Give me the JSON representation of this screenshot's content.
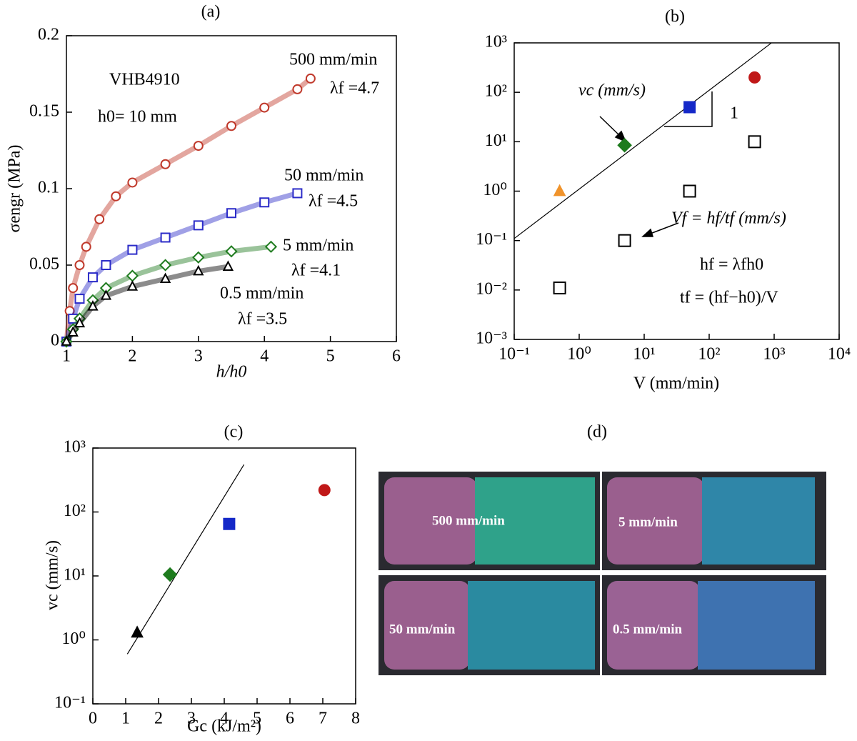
{
  "chart_data": [
    {
      "type": "line",
      "title": "(a)",
      "xlabel": "h/h0",
      "ylabel": "σengr (MPa)",
      "xlim": [
        1,
        6
      ],
      "ylim": [
        0,
        0.2
      ],
      "xticks": [
        1,
        2,
        3,
        4,
        5,
        6
      ],
      "yticks": [
        0,
        0.05,
        0.1,
        0.15,
        0.2
      ],
      "annotations": [
        "VHB4910",
        "h0= 10 mm"
      ],
      "series": [
        {
          "name": "500 mm/min",
          "label": "λf =4.7",
          "color": "#c0392b",
          "marker": "circle",
          "filled": false,
          "x": [
            1,
            1.05,
            1.1,
            1.2,
            1.3,
            1.5,
            1.75,
            2,
            2.5,
            3,
            3.5,
            4,
            4.5,
            4.7
          ],
          "values": [
            0,
            0.02,
            0.035,
            0.05,
            0.062,
            0.08,
            0.095,
            0.104,
            0.116,
            0.128,
            0.141,
            0.153,
            0.165,
            0.172
          ]
        },
        {
          "name": "50 mm/min",
          "label": "λf =4.5",
          "color": "#2c2cc8",
          "marker": "square",
          "filled": false,
          "x": [
            1,
            1.1,
            1.2,
            1.4,
            1.6,
            2,
            2.5,
            3,
            3.5,
            4,
            4.5
          ],
          "values": [
            0,
            0.015,
            0.028,
            0.042,
            0.05,
            0.06,
            0.068,
            0.076,
            0.084,
            0.091,
            0.097
          ]
        },
        {
          "name": "5 mm/min",
          "label": "λf =4.1",
          "color": "#1e7b1e",
          "marker": "diamond",
          "filled": false,
          "x": [
            1,
            1.1,
            1.2,
            1.4,
            1.6,
            2,
            2.5,
            3,
            3.5,
            4.1
          ],
          "values": [
            0,
            0.008,
            0.015,
            0.027,
            0.035,
            0.043,
            0.05,
            0.055,
            0.059,
            0.062
          ]
        },
        {
          "name": "0.5 mm/min",
          "label": "λf =3.5",
          "color": "#000000",
          "marker": "triangle",
          "filled": false,
          "x": [
            1,
            1.1,
            1.2,
            1.4,
            1.6,
            2,
            2.5,
            3,
            3.45
          ],
          "values": [
            0,
            0.006,
            0.012,
            0.023,
            0.03,
            0.036,
            0.041,
            0.046,
            0.049
          ]
        }
      ]
    },
    {
      "type": "scatter",
      "title": "(b)",
      "xlabel": "V (mm/min)",
      "xscale": "log",
      "yscale": "log",
      "xlim": [
        0.1,
        10000
      ],
      "ylim": [
        0.001,
        1000
      ],
      "xticks": [
        {
          "value": 0.1,
          "label": "10⁻¹"
        },
        {
          "value": 1,
          "label": "10⁰"
        },
        {
          "value": 10,
          "label": "10¹"
        },
        {
          "value": 100,
          "label": "10²"
        },
        {
          "value": 1000,
          "label": "10³"
        },
        {
          "value": 10000,
          "label": "10⁴"
        }
      ],
      "yticks": [
        {
          "value": 0.001,
          "label": "10⁻³"
        },
        {
          "value": 0.01,
          "label": "10⁻²"
        },
        {
          "value": 0.1,
          "label": "10⁻¹"
        },
        {
          "value": 1,
          "label": "10⁰"
        },
        {
          "value": 10,
          "label": "10¹"
        },
        {
          "value": 100,
          "label": "10²"
        },
        {
          "value": 1000,
          "label": "10³"
        }
      ],
      "annotations": [
        "1",
        "hf = λfh0",
        "tf = (hf−h0)/V"
      ],
      "line": {
        "x": [
          0.1,
          900
        ],
        "values": [
          0.11,
          990
        ]
      },
      "series": [
        {
          "name": "vc (mm/s)",
          "x": [
            0.5,
            5,
            50,
            500
          ],
          "values": [
            1.0,
            8.5,
            50,
            200
          ],
          "colors": [
            "#f0932b",
            "#1e7b1e",
            "#1428c8",
            "#c01818"
          ],
          "markers": [
            "triangle",
            "diamond",
            "square",
            "circle"
          ],
          "filled": true
        },
        {
          "name": "Vf = hf/tf (mm/s)",
          "x": [
            0.5,
            5,
            50,
            500
          ],
          "values": [
            0.011,
            0.1,
            1.0,
            10
          ],
          "color": "#000000",
          "marker": "square",
          "filled": false
        }
      ]
    },
    {
      "type": "scatter",
      "title": "(c)",
      "xlabel": "Gc (kJ/m²)",
      "ylabel": "vc (mm/s)",
      "yscale": "log",
      "xlim": [
        0,
        8
      ],
      "ylim": [
        0.1,
        1000
      ],
      "xticks": [
        0,
        1,
        2,
        3,
        4,
        5,
        6,
        7,
        8
      ],
      "yticks": [
        {
          "value": 0.1,
          "label": "10⁻¹"
        },
        {
          "value": 1,
          "label": "10⁰"
        },
        {
          "value": 10,
          "label": "10¹"
        },
        {
          "value": 100,
          "label": "10²"
        },
        {
          "value": 1000,
          "label": "10³"
        }
      ],
      "line": {
        "x": [
          1.05,
          4.6
        ],
        "values": [
          0.6,
          550
        ]
      },
      "series": [
        {
          "x": [
            1.35,
            2.35,
            4.15,
            7.05
          ],
          "values": [
            1.3,
            10.5,
            65,
            220
          ],
          "colors": [
            "#000000",
            "#1e7b1e",
            "#1428c8",
            "#c01818"
          ],
          "markers": [
            "triangle",
            "diamond",
            "square",
            "circle"
          ],
          "filled": true
        }
      ]
    }
  ],
  "photos": {
    "title": "(d)",
    "labels": [
      "500 mm/min",
      "5 mm/min",
      "50 mm/min",
      "0.5 mm/min"
    ]
  }
}
